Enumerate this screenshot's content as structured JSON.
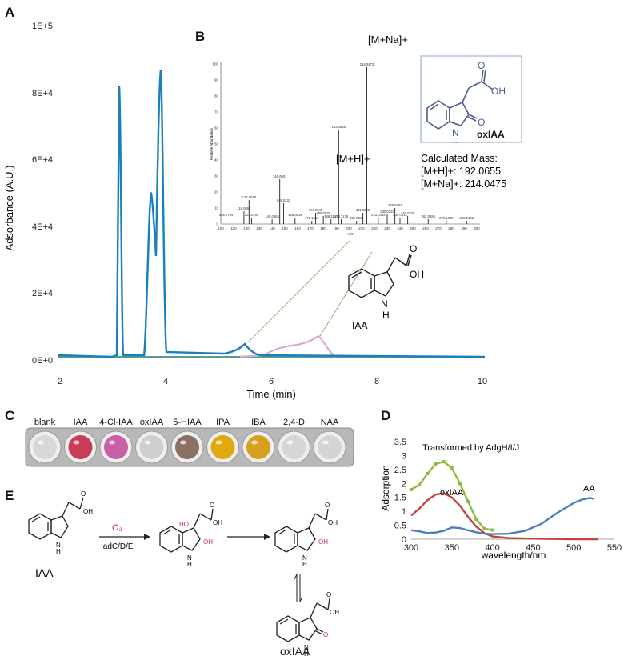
{
  "panels": {
    "a": "A",
    "b": "B",
    "c": "C",
    "d": "D",
    "e": "E"
  },
  "panel_a": {
    "ylabel": "Adsorbance (A.U.)",
    "xlabel": "Time (min)",
    "yticks": [
      "0E+0",
      "2E+4",
      "4E+4",
      "6E+4",
      "8E+4",
      "1E+5"
    ],
    "xticks": [
      "2",
      "4",
      "6",
      "8",
      "10"
    ],
    "compound_label": "IAA",
    "colors": {
      "trace_blue": "#1a7fbf",
      "trace_pink": "#d9a9cf",
      "baseline": "#5b9a8f"
    }
  },
  "panel_b": {
    "label_mna": "[M+Na]+",
    "label_mh": "[M+H]+",
    "compound": "oxIAA",
    "calc_title": "Calculated Mass:",
    "calc_mh": "[M+H]+: 192.0655",
    "calc_mna": "[M+Na]+: 214.0475",
    "ms_xticks": [
      "100",
      "110",
      "120",
      "130",
      "140",
      "150",
      "160",
      "170",
      "180",
      "190",
      "200",
      "210",
      "220",
      "230",
      "240",
      "250",
      "260",
      "270",
      "280",
      "290",
      "300"
    ],
    "ms_yticks": [
      "0",
      "10",
      "20",
      "30",
      "40",
      "50",
      "60",
      "70",
      "80",
      "90",
      "100"
    ],
    "ms_ylabel": "Relative Abundance",
    "ms_xlabel": "m/z",
    "peak_labels": [
      "104.0704",
      "118.0651",
      "122.0610",
      "124.0190",
      "140.0684",
      "146.0601",
      "149.0232",
      "158.0034",
      "171.1051",
      "174.0548",
      "180.0831",
      "186.1147",
      "192.0656",
      "194.1175",
      "206.0611",
      "211.0299",
      "214.0473",
      "223.0442",
      "230.0123",
      "236.0292",
      "240.0013",
      "246.0229",
      "262.0385",
      "276.1649",
      "292.0492"
    ]
  },
  "panel_c": {
    "wells": [
      "blank",
      "IAA",
      "4-Cl-IAA",
      "oxIAA",
      "5-HIAA",
      "IPA",
      "IBA",
      "2,4-D",
      "NAA"
    ],
    "well_colors": [
      "#d8d8d8",
      "#c93c57",
      "#c85fa8",
      "#cfcfcf",
      "#8a7060",
      "#e2a80f",
      "#d9a020",
      "#d6d6d6",
      "#d4d4d4"
    ]
  },
  "panel_d": {
    "chart_data": {
      "type": "line",
      "xlabel": "wavelength/nm",
      "ylabel": "Adsorption",
      "xlim": [
        300,
        550
      ],
      "ylim": [
        0,
        3.5
      ],
      "xticks": [
        "300",
        "350",
        "400",
        "450",
        "500",
        "550"
      ],
      "yticks": [
        "0",
        "0.5",
        "1",
        "1.5",
        "2",
        "2.5",
        "3",
        "3.5"
      ],
      "series": [
        {
          "name": "Transformed by AdgH/I/J",
          "color": "#8dbb3f",
          "x": [
            300,
            310,
            320,
            330,
            340,
            350,
            360,
            370,
            380,
            390,
            400
          ],
          "y": [
            1.78,
            1.95,
            2.35,
            2.7,
            2.78,
            2.55,
            2.0,
            1.35,
            0.72,
            0.38,
            0.33
          ]
        },
        {
          "name": "oxIAA",
          "color": "#c0463e",
          "x": [
            300,
            310,
            320,
            330,
            340,
            350,
            360,
            370,
            380,
            390,
            400,
            420,
            450,
            500,
            530
          ],
          "y": [
            0.85,
            1.1,
            1.4,
            1.6,
            1.65,
            1.5,
            1.2,
            0.8,
            0.45,
            0.22,
            0.1,
            0.04,
            0.02,
            0.0,
            0.0
          ]
        },
        {
          "name": "IAA",
          "color": "#4a80bd",
          "x": [
            300,
            310,
            320,
            330,
            340,
            350,
            360,
            370,
            380,
            390,
            400,
            420,
            440,
            460,
            480,
            500,
            510,
            520,
            525
          ],
          "y": [
            0.32,
            0.28,
            0.22,
            0.24,
            0.3,
            0.42,
            0.4,
            0.32,
            0.25,
            0.2,
            0.18,
            0.2,
            0.3,
            0.55,
            0.95,
            1.3,
            1.42,
            1.48,
            1.45
          ]
        }
      ]
    }
  },
  "panel_e": {
    "reagent_top": "O₂",
    "reagent_bottom": "IadC/D/E",
    "label_iaa": "IAA",
    "label_oxiaa": "oxIAA",
    "ho": "HO",
    "oh": "OH",
    "o": "O",
    "nh": "N\nH",
    "colors": {
      "red": "#c0304a"
    }
  }
}
